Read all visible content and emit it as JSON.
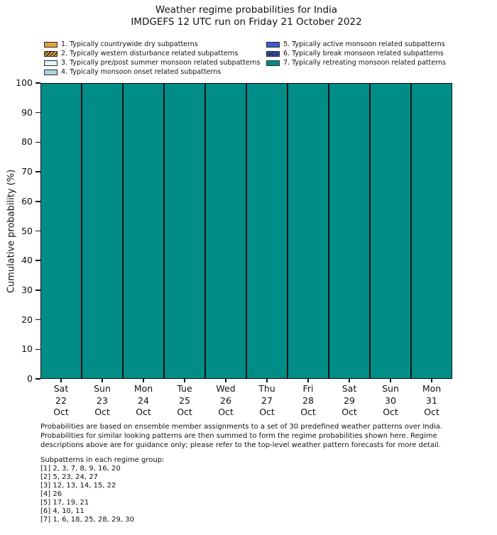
{
  "title": {
    "line1": "Weather regime probabilities for India",
    "line2": "IMDGEFS 12 UTC run on Friday 21 October 2022"
  },
  "legend": {
    "items": [
      {
        "label": "1. Typically countrywide dry subpatterns",
        "color": "#E0A33C",
        "hatch": false
      },
      {
        "label": "2. Typically western disturbance related subpatterns",
        "color": "#E0A33C",
        "hatch": true
      },
      {
        "label": "3. Typically pre/post summer monsoon related subpatterns",
        "color": "#E2F4F9",
        "hatch": false
      },
      {
        "label": "4. Typically monsoon onset related subpatterns",
        "color": "#A9D5E5",
        "hatch": false
      },
      {
        "label": "5. Typically active monsoon related subpatterns",
        "color": "#3C5BD0",
        "hatch": false
      },
      {
        "label": "6. Typically break monsoon related subpatterns",
        "color": "#3C5BD0",
        "hatch": true
      },
      {
        "label": "7. Typically retreating monsoon related patterns",
        "color": "#008D88",
        "hatch": false
      }
    ]
  },
  "chart_data": {
    "type": "bar",
    "stacked": true,
    "title": "Weather regime probabilities for India",
    "subtitle": "IMDGEFS 12 UTC run on Friday 21 October 2022",
    "categories": [
      "Sat 22 Oct",
      "Sun 23 Oct",
      "Mon 24 Oct",
      "Tue 25 Oct",
      "Wed 26 Oct",
      "Thu 27 Oct",
      "Fri 28 Oct",
      "Sat 29 Oct",
      "Sun 30 Oct",
      "Mon 31 Oct"
    ],
    "categories_multiline": [
      [
        "Sat",
        "22",
        "Oct"
      ],
      [
        "Sun",
        "23",
        "Oct"
      ],
      [
        "Mon",
        "24",
        "Oct"
      ],
      [
        "Tue",
        "25",
        "Oct"
      ],
      [
        "Wed",
        "26",
        "Oct"
      ],
      [
        "Thu",
        "27",
        "Oct"
      ],
      [
        "Fri",
        "28",
        "Oct"
      ],
      [
        "Sat",
        "29",
        "Oct"
      ],
      [
        "Sun",
        "30",
        "Oct"
      ],
      [
        "Mon",
        "31",
        "Oct"
      ]
    ],
    "series": [
      {
        "name": "1. Typically countrywide dry subpatterns",
        "values": [
          0,
          0,
          0,
          0,
          0,
          0,
          0,
          0,
          0,
          0
        ]
      },
      {
        "name": "2. Typically western disturbance related subpatterns",
        "values": [
          0,
          0,
          0,
          0,
          0,
          0,
          0,
          0,
          0,
          0
        ]
      },
      {
        "name": "3. Typically pre/post summer monsoon related subpatterns",
        "values": [
          0,
          0,
          0,
          0,
          0,
          0,
          0,
          0,
          0,
          0
        ]
      },
      {
        "name": "4. Typically monsoon onset related subpatterns",
        "values": [
          0,
          0,
          0,
          0,
          0,
          0,
          0,
          0,
          0,
          0
        ]
      },
      {
        "name": "5. Typically active monsoon related subpatterns",
        "values": [
          0,
          0,
          0,
          0,
          0,
          0,
          0,
          0,
          0,
          0
        ]
      },
      {
        "name": "6. Typically break monsoon related subpatterns",
        "values": [
          0,
          0,
          0,
          0,
          0,
          0,
          0,
          0,
          0,
          0
        ]
      },
      {
        "name": "7. Typically retreating monsoon related patterns",
        "values": [
          100,
          100,
          100,
          100,
          100,
          100,
          100,
          100,
          100,
          100
        ]
      }
    ],
    "ylabel": "Cumulative probability (%)",
    "xlabel": "",
    "ylim": [
      0,
      100
    ],
    "yticks": [
      0,
      10,
      20,
      30,
      40,
      50,
      60,
      70,
      80,
      90,
      100
    ],
    "grid": false,
    "legend_position": "top"
  },
  "footer": {
    "lines": [
      "Probabilities are based on ensemble member assignments to a set of 30 predefined weather patterns over India.",
      "Probabilities for similar looking patterns are then summed to form the regime probabilities shown here. Regime",
      "descriptions above are for guidance only; please refer to the top-level weather pattern forecasts for more detail."
    ]
  },
  "subpatterns": {
    "title": "Subpatterns in each regime group:",
    "lines": [
      "[1] 2, 3, 7, 8, 9, 16, 20",
      "[2] 5, 23, 24, 27",
      "[3] 12, 13, 14, 15, 22",
      "[4] 26",
      "[5] 17, 19, 21",
      "[6] 4, 10, 11",
      "[7] 1, 6, 18, 25, 28, 29, 30"
    ]
  },
  "colors": {
    "background": "#FFFFFF",
    "bar_fill": "#008D88",
    "bar_border": "#101010",
    "axis": "#111111",
    "text": "#111111"
  }
}
